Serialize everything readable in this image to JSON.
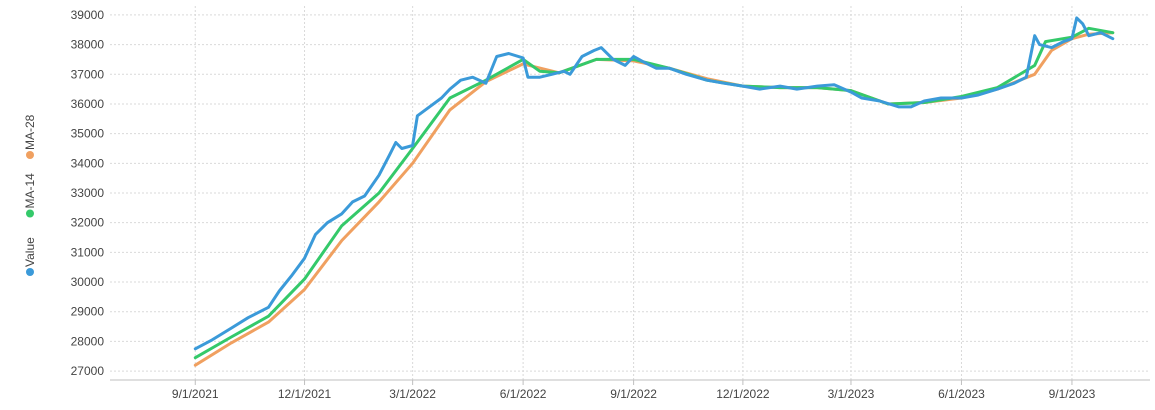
{
  "chart_data": {
    "type": "line",
    "title": "",
    "xlabel": "",
    "ylabel": "",
    "ylim": [
      26700,
      39300
    ],
    "grid": true,
    "legend_position": "left-vertical",
    "y_ticks": [
      "27000",
      "28000",
      "29000",
      "30000",
      "31000",
      "32000",
      "33000",
      "34000",
      "35000",
      "36000",
      "37000",
      "38000",
      "39000"
    ],
    "x_ticks": [
      "9/1/2021",
      "12/1/2021",
      "3/1/2022",
      "6/1/2022",
      "9/1/2022",
      "12/1/2022",
      "3/1/2023",
      "6/1/2023",
      "9/1/2023"
    ],
    "series": [
      {
        "name": "Value",
        "color": "#3b9ad9",
        "points": [
          [
            "2021-09-01",
            27750
          ],
          [
            "2021-09-15",
            28050
          ],
          [
            "2021-10-01",
            28450
          ],
          [
            "2021-10-15",
            28800
          ],
          [
            "2021-11-01",
            29150
          ],
          [
            "2021-11-10",
            29700
          ],
          [
            "2021-11-20",
            30200
          ],
          [
            "2021-12-01",
            30800
          ],
          [
            "2021-12-10",
            31600
          ],
          [
            "2021-12-20",
            32000
          ],
          [
            "2022-01-01",
            32300
          ],
          [
            "2022-01-10",
            32700
          ],
          [
            "2022-01-20",
            32900
          ],
          [
            "2022-02-01",
            33600
          ],
          [
            "2022-02-10",
            34300
          ],
          [
            "2022-02-15",
            34700
          ],
          [
            "2022-02-20",
            34500
          ],
          [
            "2022-03-01",
            34600
          ],
          [
            "2022-03-05",
            35600
          ],
          [
            "2022-03-15",
            35900
          ],
          [
            "2022-03-25",
            36200
          ],
          [
            "2022-04-01",
            36500
          ],
          [
            "2022-04-10",
            36800
          ],
          [
            "2022-04-20",
            36900
          ],
          [
            "2022-05-01",
            36700
          ],
          [
            "2022-05-10",
            37600
          ],
          [
            "2022-05-20",
            37700
          ],
          [
            "2022-06-01",
            37550
          ],
          [
            "2022-06-05",
            36900
          ],
          [
            "2022-06-15",
            36900
          ],
          [
            "2022-06-25",
            37000
          ],
          [
            "2022-07-05",
            37100
          ],
          [
            "2022-07-10",
            37000
          ],
          [
            "2022-07-20",
            37600
          ],
          [
            "2022-07-30",
            37800
          ],
          [
            "2022-08-05",
            37900
          ],
          [
            "2022-08-15",
            37500
          ],
          [
            "2022-08-25",
            37300
          ],
          [
            "2022-09-01",
            37600
          ],
          [
            "2022-09-10",
            37400
          ],
          [
            "2022-09-20",
            37200
          ],
          [
            "2022-10-01",
            37200
          ],
          [
            "2022-10-15",
            37000
          ],
          [
            "2022-11-01",
            36800
          ],
          [
            "2022-11-15",
            36700
          ],
          [
            "2022-12-01",
            36600
          ],
          [
            "2022-12-15",
            36500
          ],
          [
            "2023-01-01",
            36600
          ],
          [
            "2023-01-15",
            36500
          ],
          [
            "2023-02-01",
            36600
          ],
          [
            "2023-02-15",
            36650
          ],
          [
            "2023-03-01",
            36400
          ],
          [
            "2023-03-10",
            36200
          ],
          [
            "2023-03-25",
            36100
          ],
          [
            "2023-04-10",
            35900
          ],
          [
            "2023-04-20",
            35900
          ],
          [
            "2023-05-01",
            36100
          ],
          [
            "2023-05-15",
            36200
          ],
          [
            "2023-06-01",
            36200
          ],
          [
            "2023-06-15",
            36300
          ],
          [
            "2023-07-01",
            36500
          ],
          [
            "2023-07-15",
            36700
          ],
          [
            "2023-07-25",
            36900
          ],
          [
            "2023-08-01",
            38300
          ],
          [
            "2023-08-05",
            38000
          ],
          [
            "2023-08-15",
            37900
          ],
          [
            "2023-08-25",
            38100
          ],
          [
            "2023-09-01",
            38200
          ],
          [
            "2023-09-05",
            38900
          ],
          [
            "2023-09-10",
            38700
          ],
          [
            "2023-09-15",
            38300
          ],
          [
            "2023-09-25",
            38400
          ],
          [
            "2023-10-05",
            38200
          ]
        ]
      },
      {
        "name": "MA-14",
        "color": "#34c96a",
        "points": [
          [
            "2021-09-01",
            27450
          ],
          [
            "2021-10-01",
            28150
          ],
          [
            "2021-11-01",
            28850
          ],
          [
            "2021-12-01",
            30100
          ],
          [
            "2022-01-01",
            31900
          ],
          [
            "2022-02-01",
            33000
          ],
          [
            "2022-03-01",
            34500
          ],
          [
            "2022-04-01",
            36200
          ],
          [
            "2022-05-01",
            36800
          ],
          [
            "2022-06-01",
            37500
          ],
          [
            "2022-06-15",
            37100
          ],
          [
            "2022-07-01",
            37050
          ],
          [
            "2022-08-01",
            37500
          ],
          [
            "2022-09-01",
            37500
          ],
          [
            "2022-10-01",
            37200
          ],
          [
            "2022-11-01",
            36800
          ],
          [
            "2022-12-01",
            36600
          ],
          [
            "2023-01-01",
            36550
          ],
          [
            "2023-02-01",
            36550
          ],
          [
            "2023-03-01",
            36450
          ],
          [
            "2023-04-01",
            36000
          ],
          [
            "2023-05-01",
            36050
          ],
          [
            "2023-06-01",
            36250
          ],
          [
            "2023-07-01",
            36550
          ],
          [
            "2023-08-01",
            37300
          ],
          [
            "2023-08-10",
            38100
          ],
          [
            "2023-09-01",
            38250
          ],
          [
            "2023-09-15",
            38550
          ],
          [
            "2023-10-05",
            38400
          ]
        ]
      },
      {
        "name": "MA-28",
        "color": "#f0a060",
        "points": [
          [
            "2021-09-01",
            27200
          ],
          [
            "2021-10-01",
            27950
          ],
          [
            "2021-11-01",
            28650
          ],
          [
            "2021-12-01",
            29750
          ],
          [
            "2022-01-01",
            31400
          ],
          [
            "2022-02-01",
            32700
          ],
          [
            "2022-03-01",
            34000
          ],
          [
            "2022-04-01",
            35800
          ],
          [
            "2022-05-01",
            36750
          ],
          [
            "2022-06-01",
            37350
          ],
          [
            "2022-07-01",
            37050
          ],
          [
            "2022-08-01",
            37500
          ],
          [
            "2022-09-01",
            37450
          ],
          [
            "2022-10-01",
            37200
          ],
          [
            "2022-11-01",
            36850
          ],
          [
            "2022-12-01",
            36600
          ],
          [
            "2023-01-01",
            36550
          ],
          [
            "2023-02-01",
            36550
          ],
          [
            "2023-03-01",
            36450
          ],
          [
            "2023-04-01",
            36000
          ],
          [
            "2023-05-01",
            36050
          ],
          [
            "2023-06-01",
            36200
          ],
          [
            "2023-07-01",
            36500
          ],
          [
            "2023-08-01",
            37000
          ],
          [
            "2023-08-15",
            37800
          ],
          [
            "2023-09-01",
            38200
          ],
          [
            "2023-09-15",
            38350
          ],
          [
            "2023-10-05",
            38400
          ]
        ]
      }
    ]
  }
}
